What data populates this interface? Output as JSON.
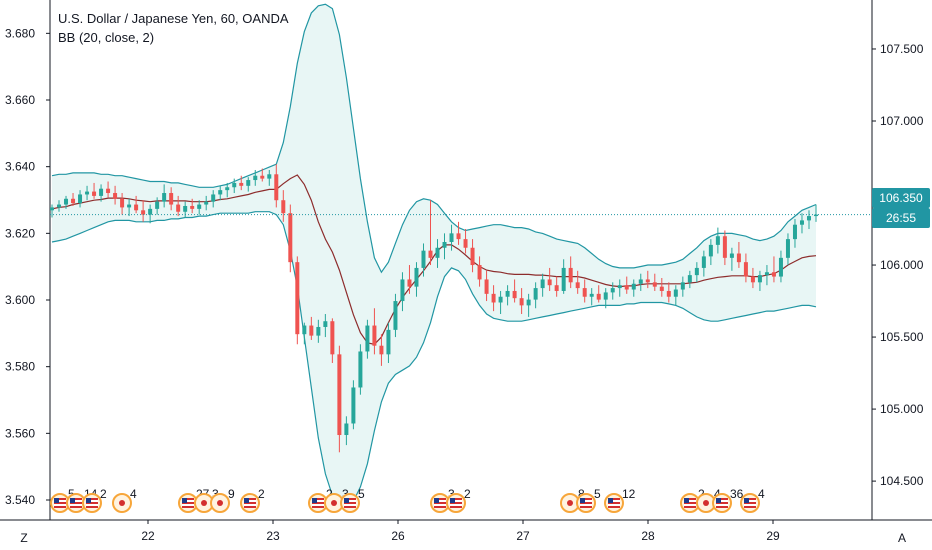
{
  "legend": {
    "title": "U.S. Dollar / Japanese Yen, 60, OANDA",
    "indicator": "BB (20, close, 2)"
  },
  "corner_buttons": {
    "left": "Z",
    "right": "A"
  },
  "current_price": {
    "label": "106.350",
    "value": 106.35,
    "countdown": "26:55"
  },
  "colors": {
    "up": "#26a69a",
    "down": "#ef5350",
    "band": "#2196a3",
    "band_fill": "#e8f6f5",
    "basis": "#8d2c2c",
    "axis_line": "#131722",
    "price_line": "#2196a3"
  },
  "events": [
    {
      "label": "5",
      "type": "us"
    },
    {
      "label": "14",
      "type": "us"
    },
    {
      "label": "2",
      "type": "us"
    },
    {
      "label": "4",
      "type": "jp"
    },
    {
      "label": "27",
      "type": "us"
    },
    {
      "label": "3",
      "type": "jp"
    },
    {
      "label": "9",
      "type": "jp"
    },
    {
      "label": "2",
      "type": "us"
    },
    {
      "label": "2",
      "type": "us"
    },
    {
      "label": "3",
      "type": "jp"
    },
    {
      "label": "5",
      "type": "us"
    },
    {
      "label": "3",
      "type": "us"
    },
    {
      "label": "2",
      "type": "us"
    },
    {
      "label": "8",
      "type": "jp"
    },
    {
      "label": "5",
      "type": "us"
    },
    {
      "label": "12",
      "type": "us"
    },
    {
      "label": "2",
      "type": "us"
    },
    {
      "label": "4",
      "type": "jp"
    },
    {
      "label": "36",
      "type": "us"
    },
    {
      "label": "4",
      "type": "us"
    }
  ],
  "chart_data": {
    "type": "candlestick",
    "title": "U.S. Dollar / Japanese Yen, 60, OANDA",
    "indicator": "BB (20, close, 2)",
    "x_ticks": [
      "22",
      "23",
      "26",
      "27",
      "28",
      "29"
    ],
    "y_left_ticks": [
      "3.680",
      "3.660",
      "3.640",
      "3.620",
      "3.600",
      "3.580",
      "3.560",
      "3.540"
    ],
    "y_right_ticks": [
      "107.500",
      "107.000",
      "106.500",
      "106.000",
      "105.500",
      "105.000",
      "104.500"
    ],
    "y_left_range": [
      3.534,
      3.69
    ],
    "y_right_range": [
      104.23,
      107.84
    ],
    "grid": false,
    "candles": [
      [
        106.38,
        106.42,
        106.33,
        106.4
      ],
      [
        106.4,
        106.45,
        106.37,
        106.42
      ],
      [
        106.42,
        106.48,
        106.39,
        106.46
      ],
      [
        106.46,
        106.5,
        106.41,
        106.43
      ],
      [
        106.43,
        106.52,
        106.4,
        106.49
      ],
      [
        106.49,
        106.55,
        106.45,
        106.51
      ],
      [
        106.51,
        106.57,
        106.46,
        106.48
      ],
      [
        106.48,
        106.56,
        106.44,
        106.53
      ],
      [
        106.53,
        106.58,
        106.47,
        106.5
      ],
      [
        106.5,
        106.55,
        106.42,
        106.46
      ],
      [
        106.46,
        106.5,
        106.35,
        106.4
      ],
      [
        106.4,
        106.46,
        106.34,
        106.42
      ],
      [
        106.42,
        106.48,
        106.36,
        106.38
      ],
      [
        106.38,
        106.45,
        106.3,
        106.35
      ],
      [
        106.35,
        106.42,
        106.29,
        106.39
      ],
      [
        106.39,
        106.47,
        106.35,
        106.44
      ],
      [
        106.44,
        106.56,
        106.4,
        106.5
      ],
      [
        106.5,
        106.54,
        106.38,
        106.42
      ],
      [
        106.42,
        106.48,
        106.34,
        106.37
      ],
      [
        106.37,
        106.44,
        106.33,
        106.41
      ],
      [
        106.41,
        106.46,
        106.36,
        106.39
      ],
      [
        106.39,
        106.45,
        106.35,
        106.42
      ],
      [
        106.42,
        106.48,
        106.38,
        106.44
      ],
      [
        106.44,
        106.52,
        106.4,
        106.49
      ],
      [
        106.49,
        106.55,
        106.45,
        106.52
      ],
      [
        106.52,
        106.57,
        106.47,
        106.54
      ],
      [
        106.54,
        106.6,
        106.5,
        106.57
      ],
      [
        106.57,
        106.62,
        106.52,
        106.55
      ],
      [
        106.55,
        106.61,
        106.51,
        106.59
      ],
      [
        106.59,
        106.66,
        106.55,
        106.62
      ],
      [
        106.62,
        106.67,
        106.58,
        106.6
      ],
      [
        106.6,
        106.66,
        106.55,
        106.63
      ],
      [
        106.63,
        106.7,
        106.4,
        106.45
      ],
      [
        106.45,
        106.52,
        106.3,
        106.36
      ],
      [
        106.36,
        106.42,
        105.95,
        106.02
      ],
      [
        106.02,
        106.06,
        105.45,
        105.52
      ],
      [
        105.52,
        105.6,
        105.45,
        105.58
      ],
      [
        105.58,
        105.64,
        105.48,
        105.51
      ],
      [
        105.51,
        105.62,
        105.46,
        105.57
      ],
      [
        105.57,
        105.66,
        105.5,
        105.61
      ],
      [
        105.61,
        105.63,
        105.32,
        105.38
      ],
      [
        105.38,
        105.44,
        104.7,
        104.82
      ],
      [
        104.82,
        104.95,
        104.75,
        104.9
      ],
      [
        104.9,
        105.2,
        104.86,
        105.15
      ],
      [
        105.15,
        105.45,
        105.1,
        105.4
      ],
      [
        105.4,
        105.62,
        105.35,
        105.58
      ],
      [
        105.58,
        105.7,
        105.38,
        105.44
      ],
      [
        105.44,
        105.52,
        105.3,
        105.38
      ],
      [
        105.38,
        105.6,
        105.32,
        105.55
      ],
      [
        105.55,
        105.8,
        105.5,
        105.75
      ],
      [
        105.75,
        105.95,
        105.68,
        105.9
      ],
      [
        105.9,
        106.0,
        105.8,
        105.85
      ],
      [
        105.85,
        106.02,
        105.78,
        105.98
      ],
      [
        105.98,
        106.15,
        105.92,
        106.1
      ],
      [
        106.1,
        106.45,
        106.0,
        106.05
      ],
      [
        106.05,
        106.18,
        105.98,
        106.12
      ],
      [
        106.12,
        106.22,
        106.04,
        106.16
      ],
      [
        106.16,
        106.28,
        106.1,
        106.22
      ],
      [
        106.22,
        106.3,
        106.14,
        106.18
      ],
      [
        106.18,
        106.25,
        106.08,
        106.12
      ],
      [
        106.12,
        106.18,
        105.95,
        106.0
      ],
      [
        106.0,
        106.06,
        105.85,
        105.9
      ],
      [
        105.9,
        105.96,
        105.75,
        105.8
      ],
      [
        105.8,
        105.86,
        105.68,
        105.74
      ],
      [
        105.74,
        105.82,
        105.66,
        105.78
      ],
      [
        105.78,
        105.86,
        105.72,
        105.82
      ],
      [
        105.82,
        105.9,
        105.74,
        105.77
      ],
      [
        105.77,
        105.84,
        105.66,
        105.72
      ],
      [
        105.72,
        105.8,
        105.64,
        105.76
      ],
      [
        105.76,
        105.88,
        105.7,
        105.84
      ],
      [
        105.84,
        105.94,
        105.78,
        105.9
      ],
      [
        105.9,
        105.98,
        105.82,
        105.86
      ],
      [
        105.86,
        105.92,
        105.78,
        105.82
      ],
      [
        105.82,
        106.04,
        105.8,
        105.98
      ],
      [
        105.98,
        106.06,
        105.84,
        105.88
      ],
      [
        105.88,
        105.96,
        105.8,
        105.84
      ],
      [
        105.84,
        105.9,
        105.74,
        105.78
      ],
      [
        105.78,
        105.84,
        105.72,
        105.8
      ],
      [
        105.8,
        105.86,
        105.74,
        105.76
      ],
      [
        105.76,
        105.84,
        105.7,
        105.81
      ],
      [
        105.81,
        105.88,
        105.76,
        105.84
      ],
      [
        105.84,
        105.9,
        105.78,
        105.86
      ],
      [
        105.86,
        105.92,
        105.8,
        105.83
      ],
      [
        105.83,
        105.9,
        105.78,
        105.87
      ],
      [
        105.87,
        105.94,
        105.82,
        105.9
      ],
      [
        105.9,
        105.96,
        105.84,
        105.88
      ],
      [
        105.88,
        105.94,
        105.82,
        105.85
      ],
      [
        105.85,
        105.91,
        105.78,
        105.82
      ],
      [
        105.82,
        105.88,
        105.74,
        105.78
      ],
      [
        105.78,
        105.86,
        105.72,
        105.83
      ],
      [
        105.83,
        105.92,
        105.78,
        105.88
      ],
      [
        105.88,
        105.96,
        105.84,
        105.93
      ],
      [
        105.93,
        106.02,
        105.88,
        105.98
      ],
      [
        105.98,
        106.1,
        105.92,
        106.06
      ],
      [
        106.06,
        106.18,
        106.0,
        106.14
      ],
      [
        106.14,
        106.26,
        106.08,
        106.2
      ],
      [
        106.2,
        106.24,
        106.0,
        106.05
      ],
      [
        106.05,
        106.12,
        105.96,
        106.08
      ],
      [
        106.08,
        106.16,
        105.98,
        106.02
      ],
      [
        106.02,
        106.08,
        105.88,
        105.92
      ],
      [
        105.92,
        105.98,
        105.84,
        105.88
      ],
      [
        105.88,
        105.96,
        105.82,
        105.93
      ],
      [
        105.93,
        106.0,
        105.86,
        105.95
      ],
      [
        105.95,
        106.06,
        105.88,
        105.92
      ],
      [
        105.92,
        106.1,
        105.88,
        106.05
      ],
      [
        106.05,
        106.22,
        106.0,
        106.18
      ],
      [
        106.18,
        106.32,
        106.12,
        106.28
      ],
      [
        106.28,
        106.36,
        106.22,
        106.31
      ],
      [
        106.31,
        106.38,
        106.25,
        106.34
      ],
      [
        106.34,
        106.42,
        106.3,
        106.35
      ]
    ],
    "bb_upper": [
      106.62,
      106.63,
      106.63,
      106.64,
      106.64,
      106.64,
      106.64,
      106.63,
      106.63,
      106.62,
      106.62,
      106.61,
      106.6,
      106.59,
      106.58,
      106.58,
      106.58,
      106.57,
      106.57,
      106.56,
      106.55,
      106.54,
      106.54,
      106.54,
      106.55,
      106.56,
      106.58,
      106.6,
      106.62,
      106.64,
      106.66,
      106.68,
      106.7,
      106.85,
      107.1,
      107.4,
      107.62,
      107.75,
      107.8,
      107.81,
      107.78,
      107.6,
      107.3,
      106.95,
      106.6,
      106.3,
      106.05,
      105.95,
      106.02,
      106.15,
      106.28,
      106.38,
      106.44,
      106.46,
      106.45,
      106.42,
      106.36,
      106.3,
      106.26,
      106.24,
      106.25,
      106.26,
      106.27,
      106.28,
      106.28,
      106.27,
      106.26,
      106.26,
      106.25,
      106.23,
      106.22,
      106.2,
      106.18,
      106.17,
      106.16,
      106.15,
      106.12,
      106.08,
      106.04,
      106.01,
      105.99,
      105.98,
      105.98,
      105.98,
      105.99,
      106.0,
      106.0,
      106.0,
      106.01,
      106.02,
      106.04,
      106.08,
      106.12,
      106.17,
      106.2,
      106.22,
      106.22,
      106.22,
      106.21,
      106.2,
      106.18,
      106.17,
      106.18,
      106.2,
      106.24,
      106.3,
      106.34,
      106.38,
      106.4,
      106.42
    ],
    "bb_lower": [
      106.16,
      106.17,
      106.18,
      106.2,
      106.22,
      106.24,
      106.26,
      106.28,
      106.3,
      106.31,
      106.31,
      106.31,
      106.3,
      106.3,
      106.3,
      106.31,
      106.31,
      106.32,
      106.32,
      106.33,
      106.33,
      106.34,
      106.34,
      106.35,
      106.36,
      106.36,
      106.36,
      106.36,
      106.36,
      106.37,
      106.37,
      106.37,
      106.35,
      106.28,
      106.1,
      105.85,
      105.5,
      105.15,
      104.8,
      104.55,
      104.4,
      104.33,
      104.32,
      104.36,
      104.46,
      104.62,
      104.85,
      105.05,
      105.18,
      105.24,
      105.27,
      105.3,
      105.36,
      105.46,
      105.6,
      105.78,
      105.92,
      105.98,
      105.96,
      105.9,
      105.8,
      105.72,
      105.66,
      105.63,
      105.62,
      105.61,
      105.61,
      105.61,
      105.62,
      105.63,
      105.64,
      105.65,
      105.66,
      105.67,
      105.68,
      105.69,
      105.7,
      105.71,
      105.72,
      105.72,
      105.72,
      105.72,
      105.73,
      105.73,
      105.74,
      105.74,
      105.74,
      105.74,
      105.73,
      105.72,
      105.7,
      105.67,
      105.64,
      105.62,
      105.61,
      105.61,
      105.62,
      105.63,
      105.64,
      105.65,
      105.66,
      105.67,
      105.68,
      105.68,
      105.69,
      105.7,
      105.71,
      105.72,
      105.72,
      105.71
    ]
  }
}
